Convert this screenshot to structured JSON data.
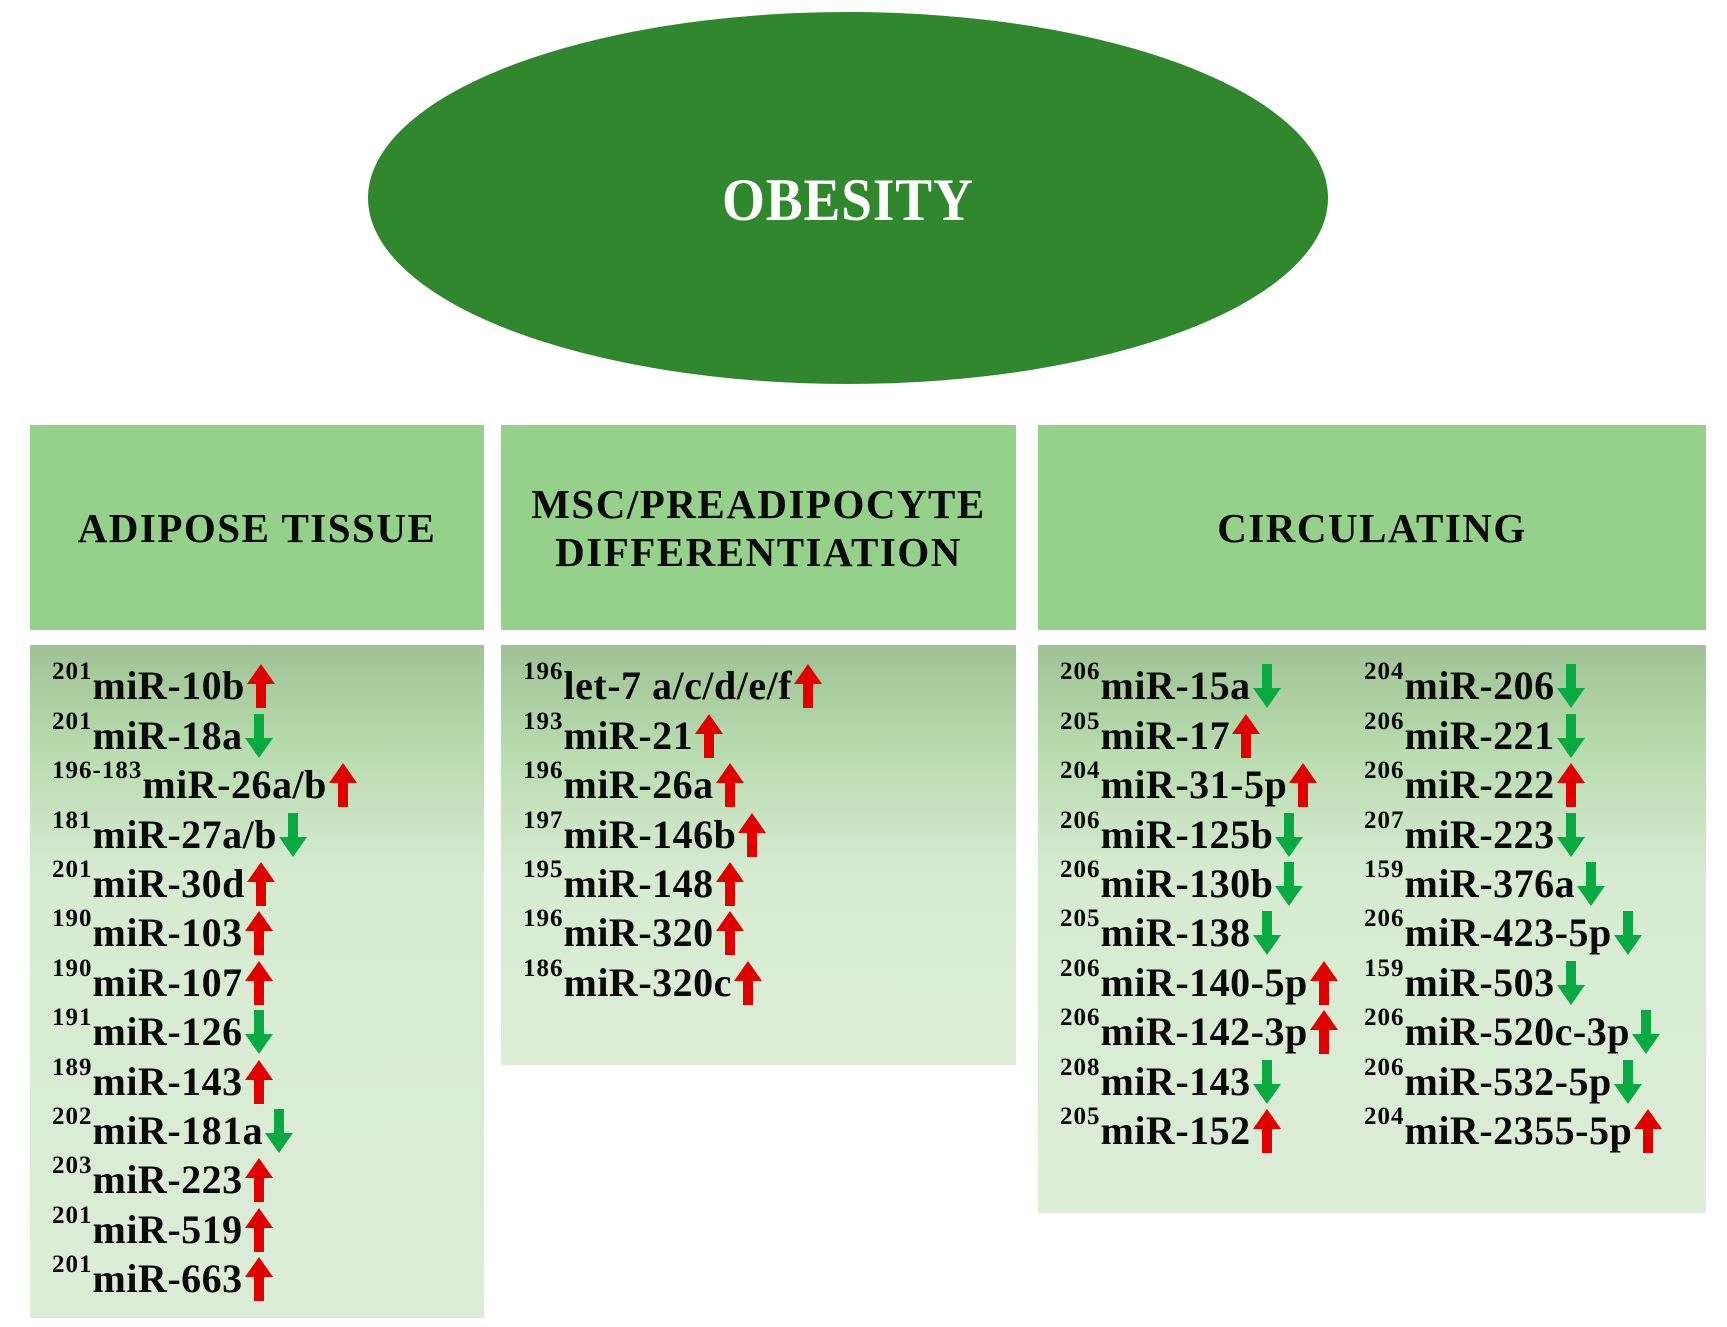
{
  "title": "OBESITY",
  "colors": {
    "ellipse": "#31872e",
    "header": "#96d18b",
    "up_arrow": "#e00000",
    "down_arrow": "#0aaa42"
  },
  "columns": [
    {
      "header": "ADIPOSE TISSUE",
      "items": [
        {
          "ref": "201",
          "name": "miR-10b",
          "direction": "up"
        },
        {
          "ref": "201",
          "name": "miR-18a",
          "direction": "down"
        },
        {
          "ref": "196-183",
          "name": "miR-26a/b",
          "direction": "up"
        },
        {
          "ref": "181",
          "name": "miR-27a/b",
          "direction": "down"
        },
        {
          "ref": "201",
          "name": "miR-30d",
          "direction": "up"
        },
        {
          "ref": "190",
          "name": "miR-103",
          "direction": "up"
        },
        {
          "ref": "190",
          "name": "miR-107",
          "direction": "up"
        },
        {
          "ref": "191",
          "name": "miR-126",
          "direction": "down"
        },
        {
          "ref": "189",
          "name": "miR-143",
          "direction": "up"
        },
        {
          "ref": "202",
          "name": "miR-181a",
          "direction": "down"
        },
        {
          "ref": "203",
          "name": "miR-223",
          "direction": "up"
        },
        {
          "ref": "201",
          "name": "miR-519",
          "direction": "up"
        },
        {
          "ref": "201",
          "name": "miR-663",
          "direction": "up"
        }
      ]
    },
    {
      "header": "MSC/PREADIPOCYTE\nDIFFERENTIATION",
      "items": [
        {
          "ref": "196",
          "name": "let-7 a/c/d/e/f",
          "direction": "up"
        },
        {
          "ref": "193",
          "name": "miR-21",
          "direction": "up"
        },
        {
          "ref": "196",
          "name": "miR-26a",
          "direction": "up"
        },
        {
          "ref": "197",
          "name": "miR-146b",
          "direction": "up"
        },
        {
          "ref": "195",
          "name": "miR-148",
          "direction": "up"
        },
        {
          "ref": "196",
          "name": "miR-320",
          "direction": "up"
        },
        {
          "ref": "186",
          "name": "miR-320c",
          "direction": "up"
        }
      ]
    },
    {
      "header": "CIRCULATING",
      "items_left": [
        {
          "ref": "206",
          "name": "miR-15a",
          "direction": "down"
        },
        {
          "ref": "205",
          "name": "miR-17",
          "direction": "up"
        },
        {
          "ref": "204",
          "name": "miR-31-5p",
          "direction": "up"
        },
        {
          "ref": "206",
          "name": "miR-125b",
          "direction": "down"
        },
        {
          "ref": "206",
          "name": "miR-130b",
          "direction": "down"
        },
        {
          "ref": "205",
          "name": "miR-138",
          "direction": "down"
        },
        {
          "ref": "206",
          "name": "miR-140-5p",
          "direction": "up"
        },
        {
          "ref": "206",
          "name": "miR-142-3p",
          "direction": "up"
        },
        {
          "ref": "208",
          "name": "miR-143",
          "direction": "down"
        },
        {
          "ref": "205",
          "name": "miR-152",
          "direction": "up"
        }
      ],
      "items_right": [
        {
          "ref": "204",
          "name": "miR-206",
          "direction": "down"
        },
        {
          "ref": "206",
          "name": "miR-221",
          "direction": "down"
        },
        {
          "ref": "206",
          "name": "miR-222",
          "direction": "up"
        },
        {
          "ref": "207",
          "name": "miR-223",
          "direction": "down"
        },
        {
          "ref": "159",
          "name": "miR-376a",
          "direction": "down"
        },
        {
          "ref": "206",
          "name": "miR-423-5p",
          "direction": "down"
        },
        {
          "ref": "159",
          "name": "miR-503",
          "direction": "down"
        },
        {
          "ref": "206",
          "name": "miR-520c-3p",
          "direction": "down"
        },
        {
          "ref": "206",
          "name": "miR-532-5p",
          "direction": "down"
        },
        {
          "ref": "204",
          "name": "miR-2355-5p",
          "direction": "up"
        }
      ]
    }
  ]
}
